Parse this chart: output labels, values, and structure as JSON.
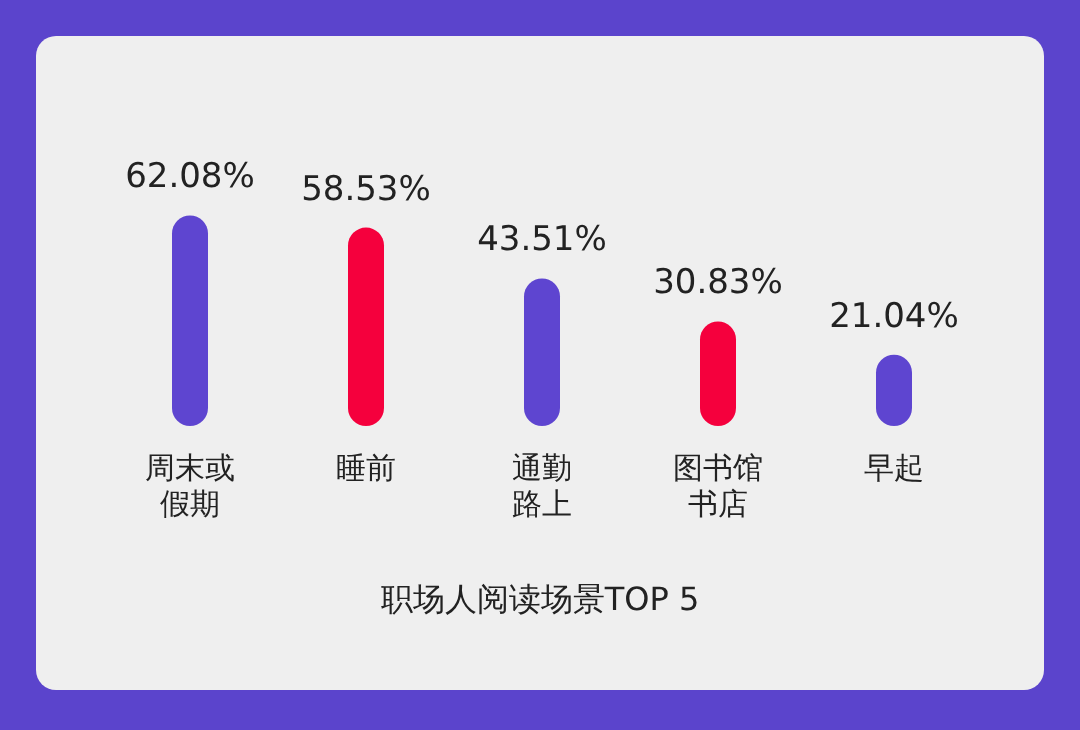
{
  "chart_data": {
    "type": "bar",
    "title": "职场人阅读场景TOP 5",
    "categories": [
      "周末或假期",
      "睡前",
      "通勤路上",
      "图书馆书店",
      "早起"
    ],
    "values": [
      62.08,
      58.53,
      43.51,
      30.83,
      21.04
    ],
    "colors": [
      "#5e45d0",
      "#f5003d",
      "#5e45d0",
      "#f5003d",
      "#5e45d0"
    ],
    "value_labels": [
      "62.08%",
      "58.53%",
      "43.51%",
      "30.83%",
      "21.04%"
    ],
    "grid": false,
    "legend": false
  }
}
